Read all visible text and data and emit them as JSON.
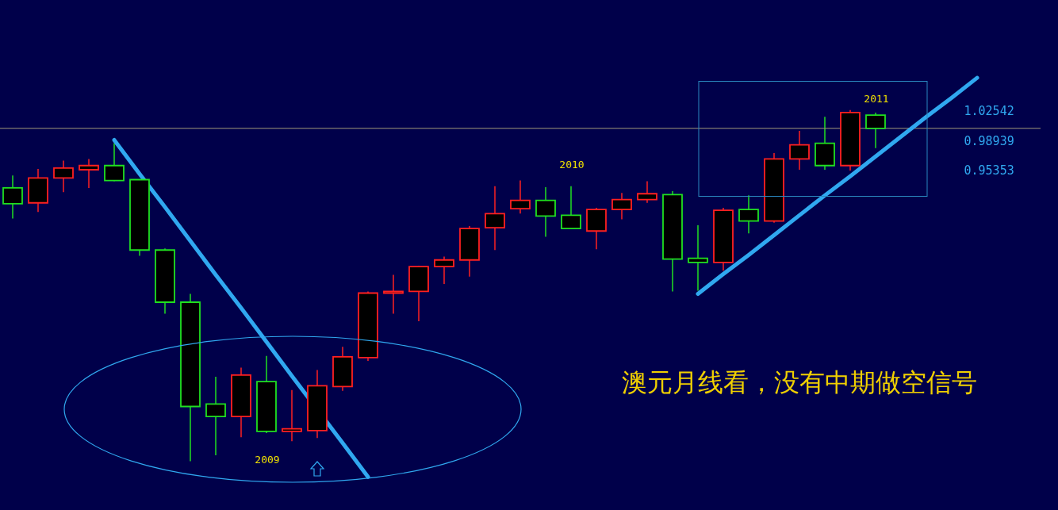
{
  "chart_data": {
    "type": "candlestick",
    "categories": [
      null,
      null,
      null,
      null,
      null,
      null,
      null,
      null,
      null,
      null,
      null,
      null,
      null,
      null,
      null,
      null,
      null,
      null,
      null,
      null,
      null,
      null,
      null,
      null,
      null,
      null,
      null,
      null,
      null,
      null,
      null,
      null,
      null,
      null,
      null,
      null,
      null,
      null,
      null,
      null,
      null
    ],
    "ohlc": [
      [
        0.932,
        0.947,
        0.895,
        0.913
      ],
      [
        0.914,
        0.955,
        0.903,
        0.944
      ],
      [
        0.944,
        0.965,
        0.927,
        0.956
      ],
      [
        0.954,
        0.967,
        0.932,
        0.959
      ],
      [
        0.959,
        0.986,
        0.94,
        0.941
      ],
      [
        0.942,
        0.942,
        0.85,
        0.857
      ],
      [
        0.857,
        0.859,
        0.78,
        0.794
      ],
      [
        0.794,
        0.804,
        0.602,
        0.668
      ],
      [
        0.671,
        0.704,
        0.609,
        0.656
      ],
      [
        0.656,
        0.715,
        0.631,
        0.706
      ],
      [
        0.698,
        0.729,
        0.636,
        0.638
      ],
      [
        0.638,
        0.688,
        0.626,
        0.641
      ],
      [
        0.639,
        0.712,
        0.63,
        0.693
      ],
      [
        0.692,
        0.74,
        0.687,
        0.728
      ],
      [
        0.727,
        0.807,
        0.723,
        0.805
      ],
      [
        0.805,
        0.827,
        0.78,
        0.807
      ],
      [
        0.807,
        0.838,
        0.771,
        0.837
      ],
      [
        0.837,
        0.849,
        0.816,
        0.845
      ],
      [
        0.845,
        0.886,
        0.825,
        0.883
      ],
      [
        0.884,
        0.934,
        0.857,
        0.901
      ],
      [
        0.907,
        0.941,
        0.901,
        0.917
      ],
      [
        0.917,
        0.933,
        0.873,
        0.898
      ],
      [
        0.899,
        0.934,
        0.883,
        0.883
      ],
      [
        0.88,
        0.908,
        0.858,
        0.906
      ],
      [
        0.906,
        0.926,
        0.894,
        0.918
      ],
      [
        0.918,
        0.94,
        0.914,
        0.925
      ],
      [
        0.924,
        0.928,
        0.807,
        0.846
      ],
      [
        0.847,
        0.887,
        0.808,
        0.842
      ],
      [
        0.842,
        0.908,
        0.832,
        0.905
      ],
      [
        0.906,
        0.923,
        0.877,
        0.892
      ],
      [
        0.892,
        0.974,
        0.89,
        0.967
      ],
      [
        0.967,
        1.001,
        0.954,
        0.984
      ],
      [
        0.986,
        1.018,
        0.954,
        0.959
      ],
      [
        0.959,
        1.026,
        0.953,
        1.023
      ],
      [
        1.02,
        1.023,
        0.98,
        1.004
      ],
      null,
      null,
      null,
      null,
      null,
      null
    ],
    "series": [
      {
        "type": "line",
        "color": "#30a8f0",
        "values": [
          null,
          null,
          null,
          null,
          0.99,
          0.949,
          0.909,
          0.868,
          0.827,
          0.787,
          0.746,
          0.705,
          null,
          0.624,
          0.583,
          null,
          null,
          null,
          null,
          null,
          null,
          null,
          null,
          null,
          null,
          null,
          null,
          null,
          null,
          null,
          null,
          null,
          null,
          null,
          null,
          null,
          null,
          null,
          null,
          null,
          null
        ]
      },
      {
        "type": "line",
        "color": "#30a8f0",
        "values": [
          null,
          null,
          null,
          null,
          null,
          null,
          null,
          null,
          null,
          null,
          null,
          null,
          null,
          null,
          null,
          null,
          null,
          null,
          null,
          null,
          null,
          null,
          null,
          null,
          null,
          null,
          null,
          0.804,
          0.828,
          0.851,
          0.875,
          0.899,
          0.923,
          0.946,
          0.97,
          0.994,
          1.018,
          1.041,
          1.065,
          null,
          null
        ]
      }
    ],
    "ylim": [
      0.543,
      1.159
    ],
    "yticks": [
      0.95353,
      0.98939,
      1.02542
    ],
    "tick_labels": "y",
    "ref_lines": [
      {
        "axis": "y",
        "value": 1.004,
        "color": "#a09878"
      }
    ],
    "annotations": [
      "2009",
      "2010",
      "2011",
      "澳元月线看，没有中期做空信号"
    ]
  }
}
